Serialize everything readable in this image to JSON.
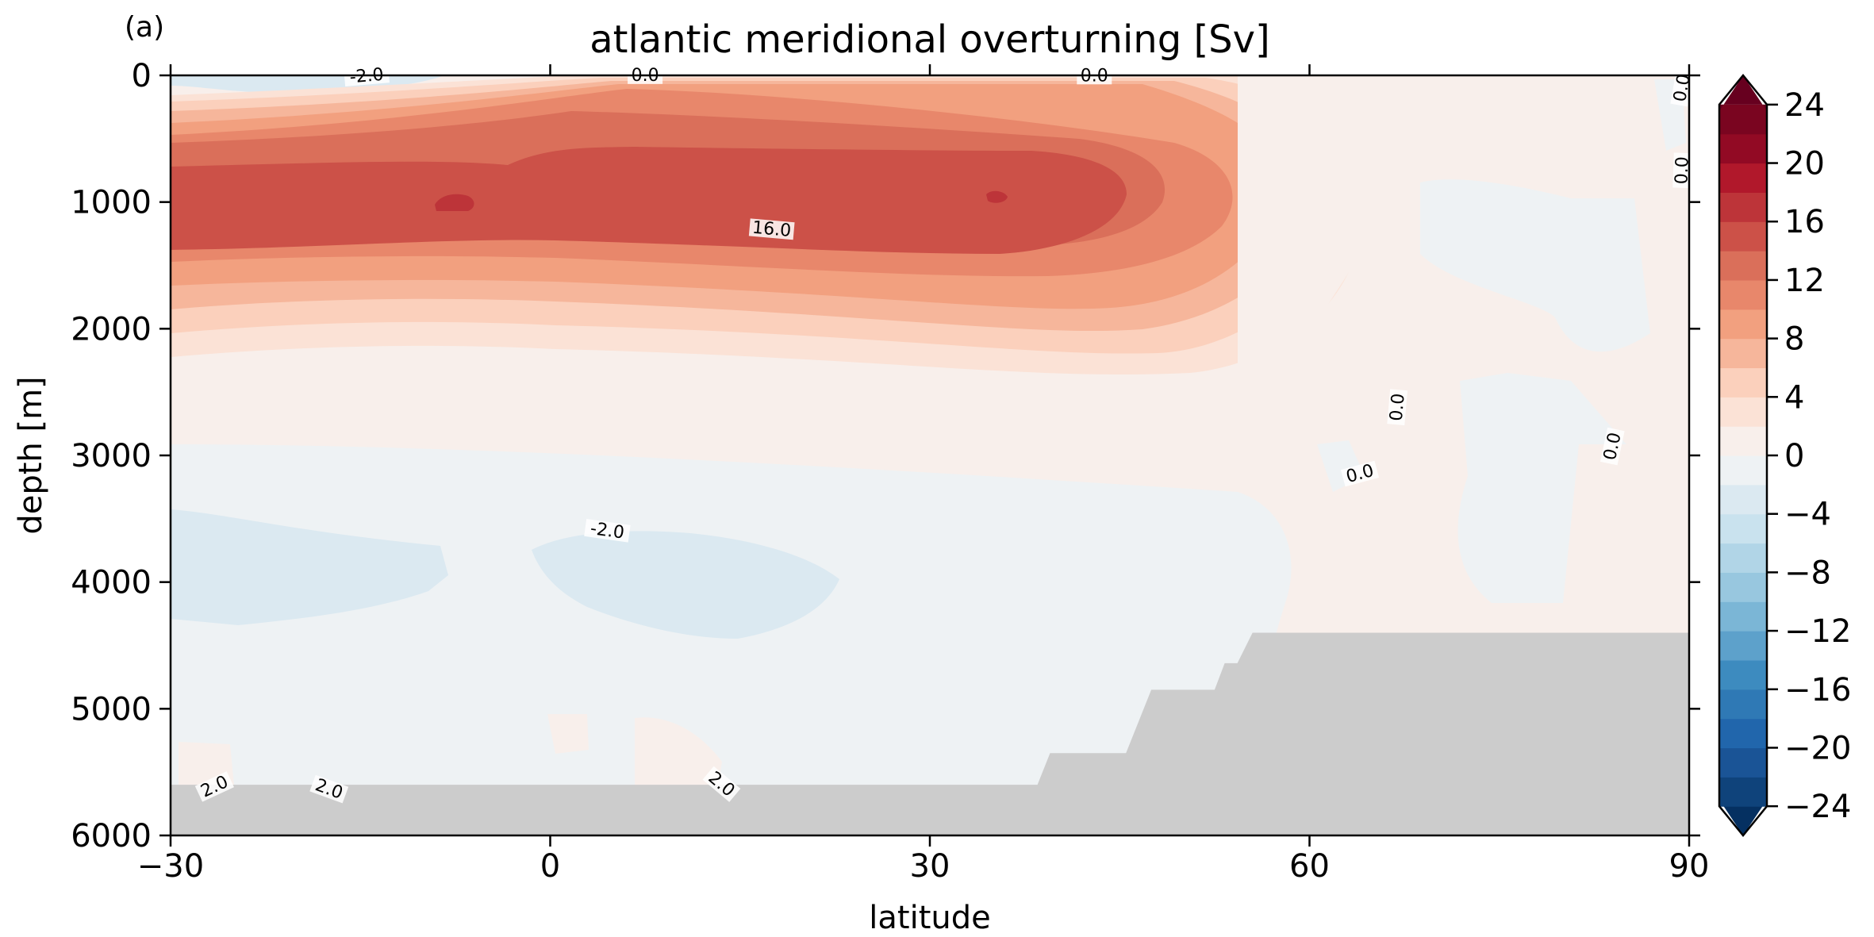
{
  "panel_label": "(a)",
  "chart_data": {
    "type": "contour",
    "title": "atlantic meridional overturning [Sv]",
    "xlabel": "latitude",
    "ylabel": "depth [m]",
    "xlim": [
      -30,
      90
    ],
    "ylim": [
      6000,
      0
    ],
    "y_inverted": true,
    "x_ticks": [
      {
        "value": -30,
        "label": "−30"
      },
      {
        "value": 0,
        "label": "0"
      },
      {
        "value": 30,
        "label": "30"
      },
      {
        "value": 60,
        "label": "60"
      },
      {
        "value": 90,
        "label": "90"
      }
    ],
    "y_ticks": [
      {
        "value": 0,
        "label": "0"
      },
      {
        "value": 1000,
        "label": "1000"
      },
      {
        "value": 2000,
        "label": "2000"
      },
      {
        "value": 3000,
        "label": "3000"
      },
      {
        "value": 4000,
        "label": "4000"
      },
      {
        "value": 5000,
        "label": "5000"
      },
      {
        "value": 6000,
        "label": "6000"
      }
    ],
    "colormap": "RdBu_r",
    "colorbar": {
      "min": -26,
      "max": 26,
      "step": 2,
      "extend": "both",
      "ticks": [
        {
          "value": 24,
          "label": "24"
        },
        {
          "value": 20,
          "label": "20"
        },
        {
          "value": 16,
          "label": "16"
        },
        {
          "value": 12,
          "label": "12"
        },
        {
          "value": 8,
          "label": "8"
        },
        {
          "value": 4,
          "label": "4"
        },
        {
          "value": 0,
          "label": "0"
        },
        {
          "value": -4,
          "label": "−4"
        },
        {
          "value": -8,
          "label": "−8"
        },
        {
          "value": -12,
          "label": "−12"
        },
        {
          "value": -16,
          "label": "−16"
        },
        {
          "value": -20,
          "label": "−20"
        },
        {
          "value": -24,
          "label": "−24"
        }
      ]
    },
    "level_colors": [
      {
        "range": [
          -26,
          -24
        ],
        "color": "#053061"
      },
      {
        "range": [
          -24,
          -22
        ],
        "color": "#0f437b"
      },
      {
        "range": [
          -22,
          -20
        ],
        "color": "#1a5496"
      },
      {
        "range": [
          -20,
          -18
        ],
        "color": "#2166ac"
      },
      {
        "range": [
          -18,
          -16
        ],
        "color": "#2f79b5"
      },
      {
        "range": [
          -16,
          -14
        ],
        "color": "#3d8bbf"
      },
      {
        "range": [
          -14,
          -12
        ],
        "color": "#5da1cb"
      },
      {
        "range": [
          -12,
          -10
        ],
        "color": "#7bb6d6"
      },
      {
        "range": [
          -10,
          -8
        ],
        "color": "#98c7df"
      },
      {
        "range": [
          -8,
          -6
        ],
        "color": "#b1d5e7"
      },
      {
        "range": [
          -6,
          -4
        ],
        "color": "#c9e2ee"
      },
      {
        "range": [
          -4,
          -2
        ],
        "color": "#dbe9f1"
      },
      {
        "range": [
          -2,
          0
        ],
        "color": "#eef2f4"
      },
      {
        "range": [
          0,
          2
        ],
        "color": "#f8efeb"
      },
      {
        "range": [
          2,
          4
        ],
        "color": "#fbe2d6"
      },
      {
        "range": [
          4,
          6
        ],
        "color": "#fbd0bc"
      },
      {
        "range": [
          6,
          8
        ],
        "color": "#f6b69b"
      },
      {
        "range": [
          8,
          10
        ],
        "color": "#f2a07f"
      },
      {
        "range": [
          10,
          12
        ],
        "color": "#e8876b"
      },
      {
        "range": [
          12,
          14
        ],
        "color": "#da6f5a"
      },
      {
        "range": [
          14,
          16
        ],
        "color": "#cc5148"
      },
      {
        "range": [
          16,
          18
        ],
        "color": "#bd3439"
      },
      {
        "range": [
          18,
          20
        ],
        "color": "#b1182b"
      },
      {
        "range": [
          20,
          22
        ],
        "color": "#920a24"
      },
      {
        "range": [
          22,
          24
        ],
        "color": "#7a0520"
      },
      {
        "range": [
          24,
          26
        ],
        "color": "#67001f"
      }
    ],
    "land_mask_color": "#cccccc",
    "bathymetry": [
      {
        "lat": -30,
        "depth": 5600
      },
      {
        "lat": 38.5,
        "depth": 5600
      },
      {
        "lat": 39.5,
        "depth": 5350
      },
      {
        "lat": 45.5,
        "depth": 5350
      },
      {
        "lat": 47.5,
        "depth": 4850
      },
      {
        "lat": 52.5,
        "depth": 4850
      },
      {
        "lat": 53.3,
        "depth": 4640
      },
      {
        "lat": 54.3,
        "depth": 4640
      },
      {
        "lat": 55.5,
        "depth": 4400
      },
      {
        "lat": 90,
        "depth": 4400
      }
    ],
    "contour_labels": [
      {
        "text": "-2.0",
        "lat": -14.5,
        "depth": 10,
        "angle": -5
      },
      {
        "text": "0.0",
        "lat": 7.5,
        "depth": 5,
        "angle": 0
      },
      {
        "text": "0.0",
        "lat": 43,
        "depth": 8,
        "angle": 0
      },
      {
        "text": "0.0",
        "lat": 89.5,
        "depth": 100,
        "angle": -80
      },
      {
        "text": "0.0",
        "lat": 89.5,
        "depth": 750,
        "angle": -88
      },
      {
        "text": "16.0",
        "lat": 17.5,
        "depth": 1220,
        "angle": 5
      },
      {
        "text": "0.0",
        "lat": 67,
        "depth": 2620,
        "angle": -85
      },
      {
        "text": "0.0",
        "lat": 84,
        "depth": 2930,
        "angle": -78
      },
      {
        "text": "0.0",
        "lat": 64,
        "depth": 3150,
        "angle": -15
      },
      {
        "text": "-2.0",
        "lat": 4.5,
        "depth": 3600,
        "angle": 8
      },
      {
        "text": "2.0",
        "lat": -26.5,
        "depth": 5620,
        "angle": -25
      },
      {
        "text": "2.0",
        "lat": -17.5,
        "depth": 5640,
        "angle": 20
      },
      {
        "text": "2.0",
        "lat": 13.5,
        "depth": 5600,
        "angle": 40
      }
    ]
  }
}
